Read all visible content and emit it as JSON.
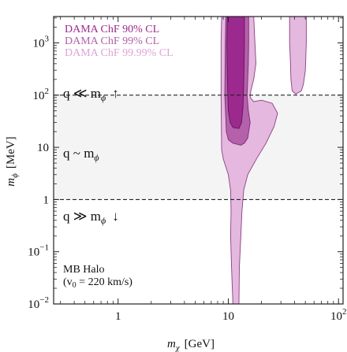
{
  "chart_data": {
    "type": "area",
    "xlabel_main": "m",
    "xlabel_sub": "χ",
    "xlabel_unit": "[GeV]",
    "ylabel_main": "m",
    "ylabel_sub": "ϕ",
    "ylabel_unit": "[MeV]",
    "x_scale": "log",
    "y_scale": "log",
    "xlim": [
      0.26,
      110
    ],
    "ylim": [
      0.01,
      3200
    ],
    "x_ticks": [
      {
        "value": 1,
        "label": "1"
      },
      {
        "value": 10,
        "label": "10"
      },
      {
        "value": 100,
        "label": "10",
        "sup": "2"
      }
    ],
    "y_ticks": [
      {
        "value": 0.01,
        "label": "10",
        "sup": "−2"
      },
      {
        "value": 0.1,
        "label": "10",
        "sup": "−1"
      },
      {
        "value": 1,
        "label": "1"
      },
      {
        "value": 10,
        "label": "10"
      },
      {
        "value": 100,
        "label": "10",
        "sup": "2"
      },
      {
        "value": 1000,
        "label": "10",
        "sup": "3"
      }
    ],
    "legend": {
      "placement": "top-left",
      "entries": [
        {
          "label": "DAMA ChF 90% CL",
          "color": "#9c2a8e"
        },
        {
          "label": "DAMA ChF 99% CL",
          "color": "#b560ab"
        },
        {
          "label": "DAMA ChF 99.99% CL",
          "color": "#e4b8df"
        }
      ]
    },
    "band": {
      "y_from": 1,
      "y_to": 100,
      "color": "#f4f4f4"
    },
    "dashed_lines_y": [
      1,
      100
    ],
    "region_labels": [
      {
        "text": "q ≪ m",
        "sub": "ϕ",
        "arrow": "↑"
      },
      {
        "text": "q ~ m",
        "sub": "ϕ",
        "arrow": ""
      },
      {
        "text": "q ≫ m",
        "sub": "ϕ",
        "arrow": "↓"
      }
    ],
    "annotation": {
      "line1": "MB Halo",
      "line2_prefix": "(v",
      "line2_sub": "0",
      "line2_suffix": " = 220 km/s)"
    },
    "series": [
      {
        "name": "DAMA ChF 99.99% CL",
        "color": "#e4b8df",
        "stroke": "#8b3f83",
        "regions": [
          {
            "points": [
              [
                8.7,
                3200
              ],
              [
                17,
                3200
              ],
              [
                17.5,
                900
              ],
              [
                17.8,
                400
              ],
              [
                17,
                200
              ],
              [
                16,
                120
              ],
              [
                15.8,
                90
              ],
              [
                17,
                75
              ],
              [
                20,
                80
              ],
              [
                25,
                70
              ],
              [
                28,
                45
              ],
              [
                26,
                25
              ],
              [
                22,
                12
              ],
              [
                18,
                6
              ],
              [
                15,
                3
              ],
              [
                13.8,
                1.5
              ],
              [
                13.3,
                0.6
              ],
              [
                13,
                0.2
              ],
              [
                12.6,
                0.05
              ],
              [
                12.5,
                0.01
              ],
              [
                11,
                0.01
              ],
              [
                10.7,
                0.05
              ],
              [
                10.5,
                0.2
              ],
              [
                10.6,
                0.6
              ],
              [
                10.5,
                1.5
              ],
              [
                10,
                3
              ],
              [
                9,
                6
              ],
              [
                8.7,
                9
              ],
              [
                8.6,
                100
              ],
              [
                8.6,
                1000
              ]
            ]
          },
          {
            "points": [
              [
                36,
                3200
              ],
              [
                51,
                3200
              ],
              [
                51,
                1000
              ],
              [
                50,
                300
              ],
              [
                48,
                160
              ],
              [
                46,
                120
              ],
              [
                41,
                105
              ],
              [
                38,
                120
              ],
              [
                37,
                200
              ],
              [
                36.5,
                500
              ],
              [
                36,
                1000
              ]
            ]
          }
        ]
      },
      {
        "name": "DAMA ChF 99% CL",
        "color": "#b560ab",
        "stroke": "#7a2c73",
        "regions": [
          {
            "points": [
              [
                9.5,
                3200
              ],
              [
                15.3,
                3200
              ],
              [
                15.3,
                1000
              ],
              [
                15.2,
                400
              ],
              [
                15,
                200
              ],
              [
                14.8,
                100
              ],
              [
                15.2,
                50
              ],
              [
                15.8,
                30
              ],
              [
                15,
                15
              ],
              [
                14,
                12
              ],
              [
                13,
                11
              ],
              [
                11,
                12
              ],
              [
                10,
                14
              ],
              [
                9.6,
                20
              ],
              [
                9.3,
                100
              ],
              [
                9.4,
                1000
              ]
            ]
          }
        ]
      },
      {
        "name": "DAMA ChF 90% CL",
        "color": "#9c2a8e",
        "stroke": "#5e1556",
        "regions": [
          {
            "points": [
              [
                9.8,
                3200
              ],
              [
                14,
                3200
              ],
              [
                14,
                1000
              ],
              [
                13.9,
                400
              ],
              [
                13.8,
                150
              ],
              [
                13.6,
                60
              ],
              [
                13.2,
                30
              ],
              [
                12.5,
                23
              ],
              [
                11,
                24
              ],
              [
                10.4,
                30
              ],
              [
                10,
                50
              ],
              [
                9.8,
                200
              ],
              [
                9.7,
                1000
              ]
            ]
          }
        ]
      }
    ]
  }
}
